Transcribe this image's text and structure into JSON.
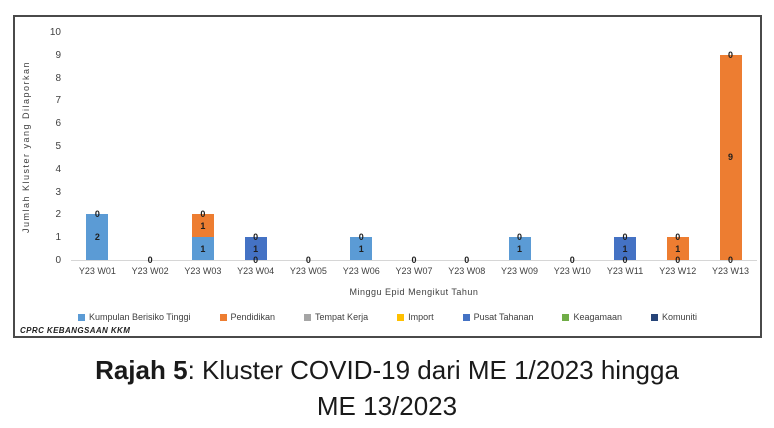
{
  "chart_data": {
    "type": "stacked-bar",
    "title": "",
    "xlabel": "Minggu Epid Mengikut Tahun",
    "ylabel": "Jumlah Kluster yang Dilaporkan",
    "ylim": [
      0,
      10
    ],
    "yticks": [
      0,
      1,
      2,
      3,
      4,
      5,
      6,
      7,
      8,
      9,
      10
    ],
    "grid": false,
    "legend_position": "bottom",
    "categories": [
      "Y23 W01",
      "Y23 W02",
      "Y23 W03",
      "Y23 W04",
      "Y23 W05",
      "Y23 W06",
      "Y23 W07",
      "Y23 W08",
      "Y23 W09",
      "Y23 W10",
      "Y23 W11",
      "Y23 W12",
      "Y23 W13"
    ],
    "series": [
      {
        "name": "Kumpulan Berisiko Tinggi",
        "color": "#5B9BD5",
        "values": [
          2,
          0,
          1,
          0,
          0,
          1,
          0,
          0,
          1,
          0,
          0,
          0,
          0
        ]
      },
      {
        "name": "Pendidikan",
        "color": "#ED7D31",
        "values": [
          0,
          0,
          1,
          0,
          0,
          0,
          0,
          0,
          0,
          0,
          0,
          1,
          9
        ]
      },
      {
        "name": "Tempat Kerja",
        "color": "#A5A5A5",
        "values": [
          0,
          0,
          0,
          0,
          0,
          0,
          0,
          0,
          0,
          0,
          0,
          0,
          0
        ]
      },
      {
        "name": "Import",
        "color": "#FFC000",
        "values": [
          0,
          0,
          0,
          0,
          0,
          0,
          0,
          0,
          0,
          0,
          0,
          0,
          0
        ]
      },
      {
        "name": "Pusat Tahanan",
        "color": "#4472C4",
        "values": [
          0,
          0,
          0,
          1,
          0,
          0,
          0,
          0,
          0,
          0,
          1,
          0,
          0
        ]
      },
      {
        "name": "Keagamaan",
        "color": "#70AD47",
        "values": [
          0,
          0,
          0,
          0,
          0,
          0,
          0,
          0,
          0,
          0,
          0,
          0,
          0
        ]
      },
      {
        "name": "Komuniti",
        "color": "#264478",
        "values": [
          0,
          0,
          0,
          0,
          0,
          0,
          0,
          0,
          0,
          0,
          0,
          0,
          0
        ]
      }
    ],
    "zero_label": "0",
    "source_label": "CPRC KEBANGSAAN KKM",
    "axis_color": "#d6d6d6"
  },
  "caption": {
    "prefix": "Rajah 5",
    "rest": ": Kluster COVID-19 dari ME 1/2023 hingga",
    "line2": "ME 13/2023"
  }
}
